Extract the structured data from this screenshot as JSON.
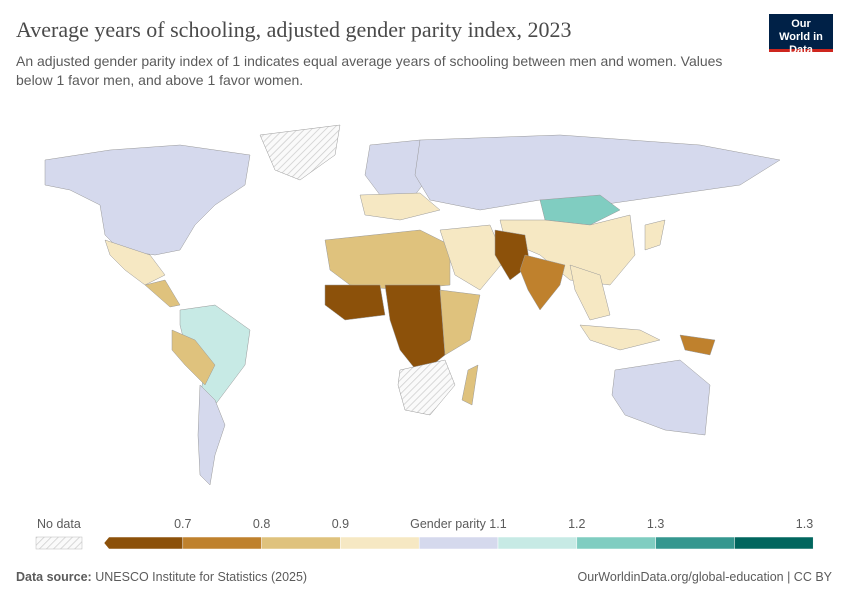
{
  "header": {
    "title": "Average years of schooling, adjusted gender parity index, 2023",
    "subtitle": "An adjusted gender parity index of 1 indicates equal average years of schooling between men and women. Values below 1 favor men, and above 1 favor women.",
    "logo": "Our World in Data"
  },
  "legend": {
    "no_data_label": "No data",
    "title": "Gender parity",
    "ticks": [
      "0.7",
      "0.8",
      "0.9",
      "1.1",
      "1.2",
      "1.3",
      "1.3"
    ],
    "bins": [
      {
        "range": "<0.7",
        "color": "#8c510a"
      },
      {
        "range": "0.7–0.8",
        "color": "#bf812d"
      },
      {
        "range": "0.8–0.9",
        "color": "#dfc27d"
      },
      {
        "range": "0.9–1",
        "color": "#f6e8c3"
      },
      {
        "range": "1–1.1",
        "color": "#d5d9ed"
      },
      {
        "range": "1.1–1.2",
        "color": "#c7eae5"
      },
      {
        "range": "1.2–1.3",
        "color": "#80cdc1"
      },
      {
        "range": "1.3",
        "color": "#35978f"
      },
      {
        "range": ">1.3",
        "color": "#01665e"
      }
    ]
  },
  "map_regions": [
    {
      "name": "north-america",
      "color": "#d5d9ed"
    },
    {
      "name": "greenland",
      "color": "nodata"
    },
    {
      "name": "mexico",
      "color": "#f6e8c3"
    },
    {
      "name": "central-america",
      "color": "#dfc27d"
    },
    {
      "name": "brazil",
      "color": "#c7eae5"
    },
    {
      "name": "peru-bolivia",
      "color": "#dfc27d"
    },
    {
      "name": "argentina-chile",
      "color": "#d5d9ed"
    },
    {
      "name": "europe",
      "color": "#d5d9ed"
    },
    {
      "name": "southern-europe",
      "color": "#f6e8c3"
    },
    {
      "name": "russia",
      "color": "#d5d9ed"
    },
    {
      "name": "mongolia",
      "color": "#80cdc1"
    },
    {
      "name": "china",
      "color": "#f6e8c3"
    },
    {
      "name": "north-africa",
      "color": "#dfc27d"
    },
    {
      "name": "west-africa",
      "color": "#8c510a"
    },
    {
      "name": "central-africa",
      "color": "#8c510a"
    },
    {
      "name": "east-africa",
      "color": "#dfc27d"
    },
    {
      "name": "southern-africa",
      "color": "nodata"
    },
    {
      "name": "middle-east",
      "color": "#f6e8c3"
    },
    {
      "name": "afghanistan-pakistan",
      "color": "#8c510a"
    },
    {
      "name": "india",
      "color": "#bf812d"
    },
    {
      "name": "southeast-asia",
      "color": "#f6e8c3"
    },
    {
      "name": "indonesia",
      "color": "#f6e8c3"
    },
    {
      "name": "papua-new-guinea",
      "color": "#bf812d"
    },
    {
      "name": "australia",
      "color": "#d5d9ed"
    },
    {
      "name": "madagascar",
      "color": "#dfc27d"
    },
    {
      "name": "japan",
      "color": "#f6e8c3"
    }
  ],
  "footer": {
    "source_label": "Data source:",
    "source": "UNESCO Institute for Statistics (2025)",
    "url": "OurWorldinData.org/global-education | CC BY"
  }
}
